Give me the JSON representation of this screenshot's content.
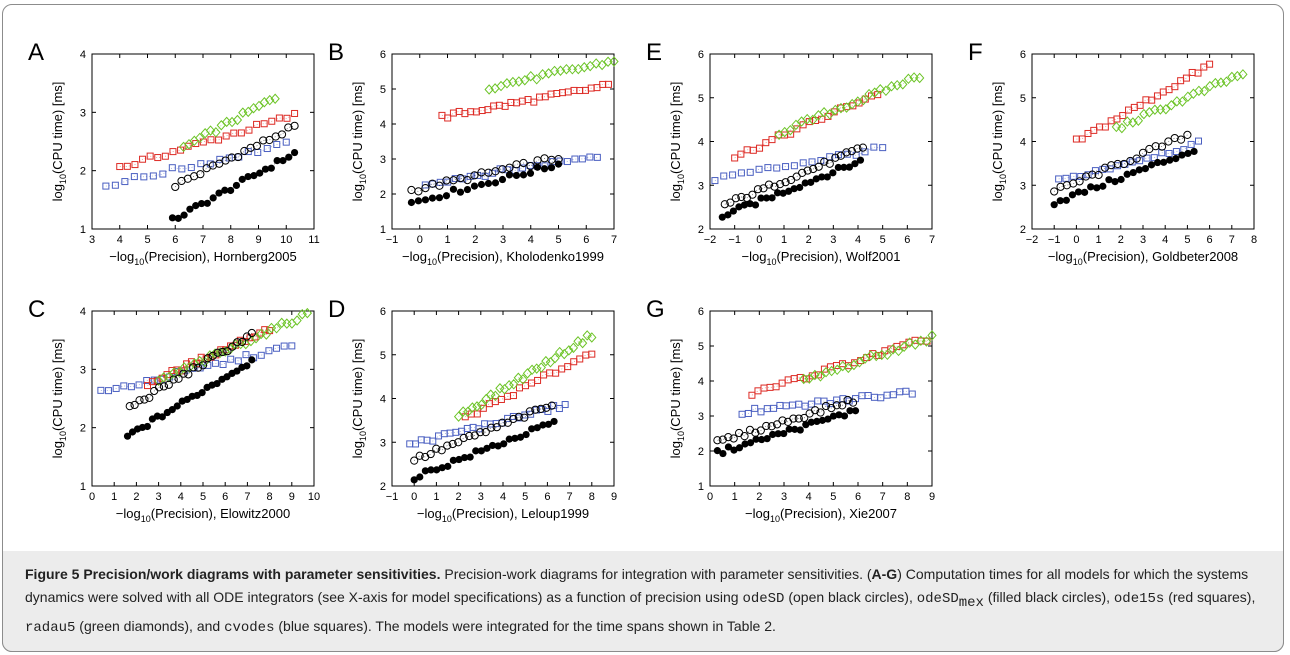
{
  "colors": {
    "odeSD": "#000000",
    "odeSDmex": "#000000",
    "ode15s": "#dd2a24",
    "radau5": "#6cc427",
    "cvodes": "#4a5fc1"
  },
  "panels": [
    {
      "letter": "A",
      "model": "Hornberg2005",
      "xticks": [
        "3",
        "4",
        "5",
        "6",
        "7",
        "8",
        "9",
        "10",
        "11"
      ],
      "yticks": [
        "1",
        "2",
        "3",
        "4"
      ],
      "xlim": [
        3,
        11
      ],
      "ylim": [
        1,
        4
      ],
      "ylabel": "log10(CPU time) [ms]",
      "xlabel": "−log10(Precision), Hornberg2005"
    },
    {
      "letter": "B",
      "model": "Kholodenko1999",
      "xticks": [
        "−1",
        "0",
        "1",
        "2",
        "3",
        "4",
        "5",
        "6",
        "7"
      ],
      "yticks": [
        "1",
        "2",
        "3",
        "4",
        "5",
        "6"
      ],
      "xlim": [
        -1,
        7
      ],
      "ylim": [
        1,
        6
      ],
      "ylabel": "log10(CPU time) [ms]",
      "xlabel": "−log10(Precision), Kholodenko1999"
    },
    {
      "letter": "E",
      "model": "Wolf2001",
      "xticks": [
        "−2",
        "−1",
        "0",
        "1",
        "2",
        "3",
        "4",
        "5",
        "6",
        "7"
      ],
      "yticks": [
        "2",
        "3",
        "4",
        "5",
        "6"
      ],
      "xlim": [
        -2,
        7
      ],
      "ylim": [
        2,
        6
      ],
      "ylabel": "log10(CPU time) [ms]",
      "xlabel": "−log10(Precision), Wolf2001"
    },
    {
      "letter": "F",
      "model": "Goldbeter2008",
      "xticks": [
        "−2",
        "−1",
        "0",
        "1",
        "2",
        "3",
        "4",
        "5",
        "6",
        "7",
        "8"
      ],
      "yticks": [
        "2",
        "3",
        "4",
        "5",
        "6"
      ],
      "xlim": [
        -2,
        8
      ],
      "ylim": [
        2,
        6
      ],
      "ylabel": "log10(CPU time) [ms]",
      "xlabel": "−log10(Precision), Goldbeter2008"
    },
    {
      "letter": "C",
      "model": "Elowitz2000",
      "xticks": [
        "0",
        "1",
        "2",
        "3",
        "4",
        "5",
        "6",
        "7",
        "8",
        "9",
        "10"
      ],
      "yticks": [
        "1",
        "2",
        "3",
        "4"
      ],
      "xlim": [
        0,
        10
      ],
      "ylim": [
        1,
        4
      ],
      "ylabel": "log10(CPU time) [ms]",
      "xlabel": "−log10(Precision), Elowitz2000"
    },
    {
      "letter": "D",
      "model": "Leloup1999",
      "xticks": [
        "−1",
        "0",
        "1",
        "2",
        "3",
        "4",
        "5",
        "6",
        "7",
        "8",
        "9"
      ],
      "yticks": [
        "2",
        "3",
        "4",
        "5",
        "6"
      ],
      "xlim": [
        -1,
        9
      ],
      "ylim": [
        2,
        6
      ],
      "ylabel": "log10(CPU time) [ms]",
      "xlabel": "−log10(Precision), Leloup1999"
    },
    {
      "letter": "G",
      "model": "Xie2007",
      "xticks": [
        "0",
        "1",
        "2",
        "3",
        "4",
        "5",
        "6",
        "7",
        "8",
        "9"
      ],
      "yticks": [
        "1",
        "2",
        "3",
        "4",
        "5",
        "6"
      ],
      "xlim": [
        0,
        9
      ],
      "ylim": [
        1,
        6
      ],
      "ylabel": "log10(CPU time) [ms]",
      "xlabel": "−log10(Precision), Xie2007"
    }
  ],
  "chart_data": [
    {
      "type": "scatter",
      "panel": "A",
      "xlabel": "−log10(Precision), Hornberg2005",
      "ylabel": "log10(CPU time) [ms]",
      "xlim": [
        3,
        11
      ],
      "ylim": [
        1,
        4
      ],
      "series": [
        {
          "marker": "open-circle",
          "x0": 6.0,
          "x1": 10.3,
          "y0": 1.75,
          "y1": 2.75,
          "n": 20
        },
        {
          "marker": "filled-circle",
          "x0": 5.9,
          "x1": 10.3,
          "y0": 1.15,
          "y1": 2.3,
          "n": 22
        },
        {
          "marker": "square",
          "color": "red",
          "x0": 4.0,
          "x1": 10.3,
          "y0": 2.05,
          "y1": 2.95,
          "n": 24
        },
        {
          "marker": "diamond",
          "color": "green",
          "x0": 6.3,
          "x1": 9.6,
          "y0": 2.4,
          "y1": 3.25,
          "n": 18
        },
        {
          "marker": "square",
          "color": "blue",
          "x0": 3.5,
          "x1": 10.0,
          "y0": 1.75,
          "y1": 2.45,
          "n": 20
        }
      ]
    },
    {
      "type": "scatter",
      "panel": "B",
      "xlabel": "−log10(Precision), Kholodenko1999",
      "ylabel": "log10(CPU time) [ms]",
      "xlim": [
        -1,
        7
      ],
      "ylim": [
        1,
        6
      ],
      "series": [
        {
          "marker": "open-circle",
          "x0": -0.3,
          "x1": 5.0,
          "y0": 2.1,
          "y1": 3.05,
          "n": 22
        },
        {
          "marker": "filled-circle",
          "x0": -0.3,
          "x1": 5.0,
          "y0": 1.75,
          "y1": 2.85,
          "n": 22
        },
        {
          "marker": "square",
          "color": "red",
          "x0": 0.8,
          "x1": 6.8,
          "y0": 4.2,
          "y1": 5.1,
          "n": 30
        },
        {
          "marker": "diamond",
          "color": "green",
          "x0": 2.5,
          "x1": 7.0,
          "y0": 5.05,
          "y1": 5.8,
          "n": 22
        },
        {
          "marker": "square",
          "color": "blue",
          "x0": 0.2,
          "x1": 6.4,
          "y0": 2.3,
          "y1": 3.1,
          "n": 24
        }
      ]
    },
    {
      "type": "scatter",
      "panel": "E",
      "xlabel": "−log10(Precision), Wolf2001",
      "ylabel": "log10(CPU time) [ms]",
      "xlim": [
        -2,
        7
      ],
      "ylim": [
        2,
        6
      ],
      "series": [
        {
          "marker": "open-circle",
          "x0": -1.4,
          "x1": 4.2,
          "y0": 2.55,
          "y1": 3.85,
          "n": 26
        },
        {
          "marker": "filled-circle",
          "x0": -1.5,
          "x1": 4.1,
          "y0": 2.3,
          "y1": 3.55,
          "n": 26
        },
        {
          "marker": "square",
          "color": "red",
          "x0": -1.0,
          "x1": 4.8,
          "y0": 3.65,
          "y1": 5.1,
          "n": 24
        },
        {
          "marker": "diamond",
          "color": "green",
          "x0": 0.8,
          "x1": 6.5,
          "y0": 4.2,
          "y1": 5.5,
          "n": 26
        },
        {
          "marker": "square",
          "color": "blue",
          "x0": -1.8,
          "x1": 5.0,
          "y0": 3.15,
          "y1": 3.85,
          "n": 20
        }
      ]
    },
    {
      "type": "scatter",
      "panel": "F",
      "xlabel": "−log10(Precision), Goldbeter2008",
      "ylabel": "log10(CPU time) [ms]",
      "xlim": [
        -2,
        8
      ],
      "ylim": [
        2,
        6
      ],
      "series": [
        {
          "marker": "open-circle",
          "x0": -1.0,
          "x1": 5.0,
          "y0": 2.85,
          "y1": 4.15,
          "n": 22
        },
        {
          "marker": "filled-circle",
          "x0": -1.0,
          "x1": 5.3,
          "y0": 2.6,
          "y1": 3.8,
          "n": 24
        },
        {
          "marker": "square",
          "color": "red",
          "x0": 0.0,
          "x1": 6.0,
          "y0": 4.0,
          "y1": 5.75,
          "n": 24
        },
        {
          "marker": "diamond",
          "color": "green",
          "x0": 1.8,
          "x1": 7.5,
          "y0": 4.3,
          "y1": 5.55,
          "n": 24
        },
        {
          "marker": "square",
          "color": "blue",
          "x0": -0.8,
          "x1": 5.5,
          "y0": 3.1,
          "y1": 3.95,
          "n": 20
        }
      ]
    },
    {
      "type": "scatter",
      "panel": "C",
      "xlabel": "−log10(Precision), Elowitz2000",
      "ylabel": "log10(CPU time) [ms]",
      "xlim": [
        0,
        10
      ],
      "ylim": [
        1,
        4
      ],
      "series": [
        {
          "marker": "open-circle",
          "x0": 1.7,
          "x1": 7.2,
          "y0": 2.35,
          "y1": 3.6,
          "n": 26
        },
        {
          "marker": "filled-circle",
          "x0": 1.6,
          "x1": 7.2,
          "y0": 1.85,
          "y1": 3.15,
          "n": 26
        },
        {
          "marker": "square",
          "color": "red",
          "x0": 2.5,
          "x1": 8.0,
          "y0": 2.75,
          "y1": 3.7,
          "n": 26
        },
        {
          "marker": "diamond",
          "color": "green",
          "x0": 3.0,
          "x1": 9.7,
          "y0": 2.8,
          "y1": 3.95,
          "n": 30
        },
        {
          "marker": "square",
          "color": "blue",
          "x0": 0.4,
          "x1": 9.0,
          "y0": 2.6,
          "y1": 3.4,
          "n": 26
        }
      ]
    },
    {
      "type": "scatter",
      "panel": "D",
      "xlabel": "−log10(Precision), Leloup1999",
      "ylabel": "log10(CPU time) [ms]",
      "xlim": [
        -1,
        9
      ],
      "ylim": [
        2,
        6
      ],
      "series": [
        {
          "marker": "open-circle",
          "x0": 0.0,
          "x1": 6.2,
          "y0": 2.6,
          "y1": 3.85,
          "n": 26
        },
        {
          "marker": "filled-circle",
          "x0": 0.0,
          "x1": 6.3,
          "y0": 2.2,
          "y1": 3.45,
          "n": 26
        },
        {
          "marker": "square",
          "color": "red",
          "x0": 2.3,
          "x1": 8.0,
          "y0": 3.55,
          "y1": 5.05,
          "n": 22
        },
        {
          "marker": "diamond",
          "color": "green",
          "x0": 2.0,
          "x1": 8.0,
          "y0": 3.6,
          "y1": 5.45,
          "n": 30
        },
        {
          "marker": "square",
          "color": "blue",
          "x0": -0.2,
          "x1": 6.8,
          "y0": 2.95,
          "y1": 3.85,
          "n": 28
        }
      ]
    },
    {
      "type": "scatter",
      "panel": "G",
      "xlabel": "−log10(Precision), Xie2007",
      "ylabel": "log10(CPU time) [ms]",
      "xlim": [
        0,
        9
      ],
      "ylim": [
        1,
        6
      ],
      "series": [
        {
          "marker": "open-circle",
          "x0": 0.3,
          "x1": 5.8,
          "y0": 2.25,
          "y1": 3.45,
          "n": 26
        },
        {
          "marker": "filled-circle",
          "x0": 0.3,
          "x1": 5.9,
          "y0": 1.95,
          "y1": 3.15,
          "n": 26
        },
        {
          "marker": "square",
          "color": "red",
          "x0": 1.7,
          "x1": 8.8,
          "y0": 3.65,
          "y1": 5.2,
          "n": 30
        },
        {
          "marker": "diamond",
          "color": "green",
          "x0": 3.8,
          "x1": 9.0,
          "y0": 4.0,
          "y1": 5.25,
          "n": 24
        },
        {
          "marker": "square",
          "color": "blue",
          "x0": 1.3,
          "x1": 8.2,
          "y0": 3.1,
          "y1": 3.7,
          "n": 28
        }
      ]
    }
  ],
  "caption": {
    "title": "Figure 5 Precision/work diagrams with parameter sensitivities.",
    "t1": " Precision-work diagrams for integration with parameter sensitivities. (",
    "ag": "A-G",
    "t2": ") Computation times for all models for which the systems dynamics were solved with all ODE integrators (see X-axis for model specifications) as a function of precision using ",
    "odeSD": "odeSD",
    "t3": " (open black circles), ",
    "odeSDmex_base": "odeSD",
    "odeSDmex_sub": "mex",
    "t4": " (filled black circles), ",
    "ode15s": "ode15s",
    "t5": " (red squares), ",
    "radau5": "radau5",
    "t6": " (green diamonds), and ",
    "cvodes": "cvodes",
    "t7": " (blue squares). The models were integrated for the time spans shown in Table 2."
  }
}
